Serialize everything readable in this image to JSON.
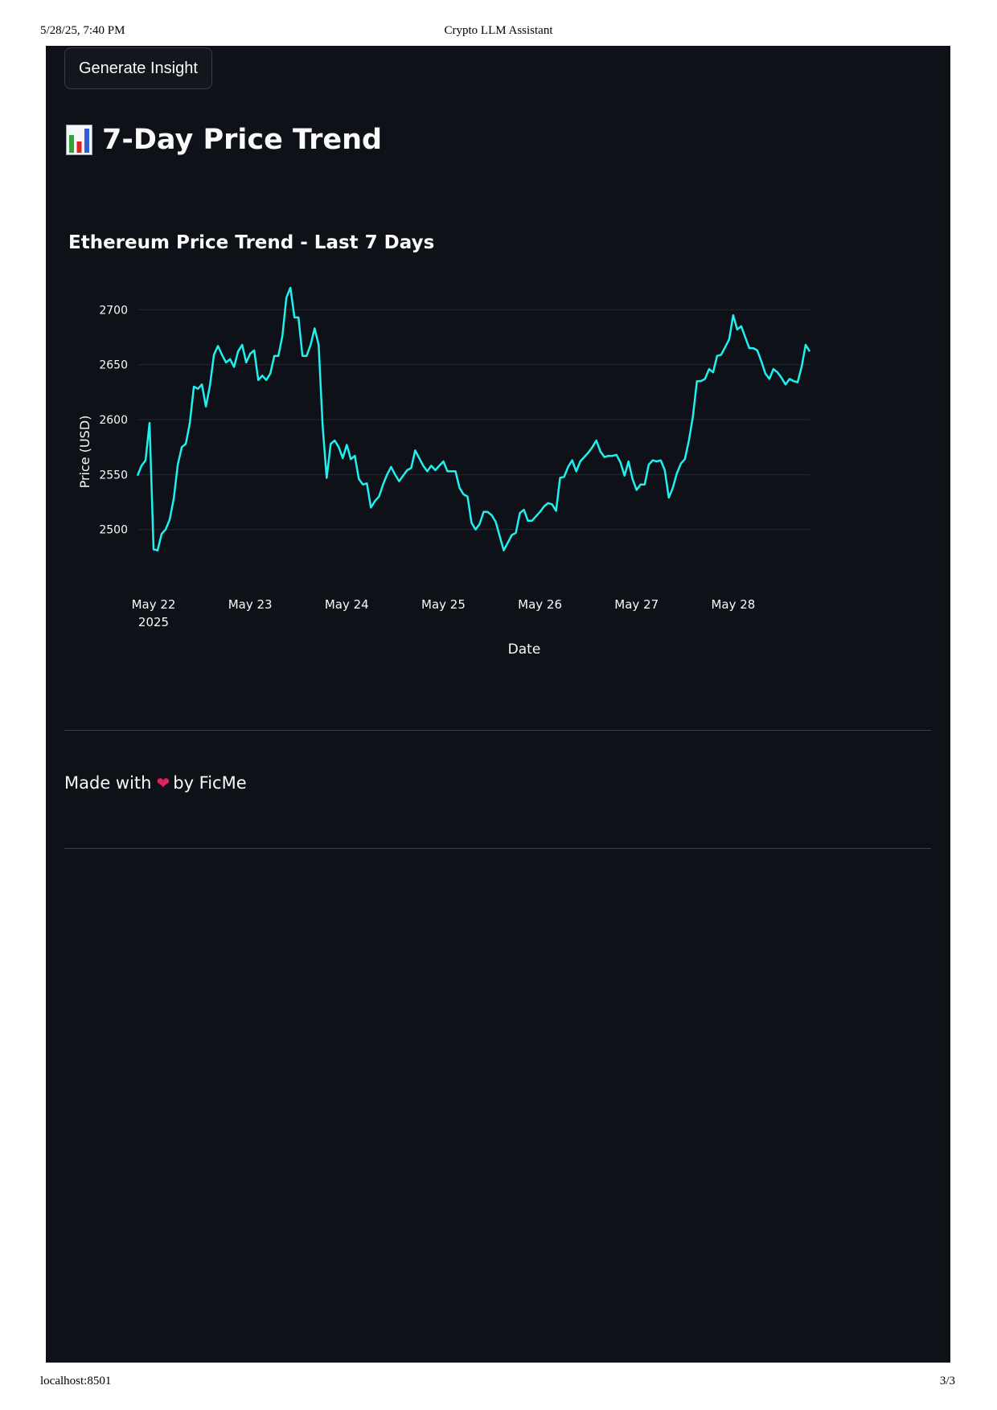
{
  "print_header": {
    "datetime": "5/28/25, 7:40 PM",
    "page_title": "Crypto LLM Assistant"
  },
  "print_footer": {
    "url": "localhost:8501",
    "page_number": "3/3"
  },
  "app": {
    "generate_button_label": "Generate Insight",
    "section_title": "7-Day Price Trend",
    "section_icon": "bar-chart-icon",
    "footer": {
      "made_with": "Made with",
      "heart_icon": "heart-icon",
      "by": "by FicMe"
    }
  },
  "colors": {
    "background": "#0e1117",
    "line": "#1ff1ef",
    "grid": "#262a33",
    "text": "#fafafa"
  },
  "chart_data": {
    "type": "line",
    "title": "Ethereum Price Trend - Last 7 Days",
    "xlabel": "Date",
    "ylabel": "Price (USD)",
    "x_start": "2025-05-21T20:00",
    "x_step_hours": 1,
    "x_ticks": [
      {
        "date": "2025-05-22",
        "label": "May 22",
        "sublabel": "2025"
      },
      {
        "date": "2025-05-23",
        "label": "May 23"
      },
      {
        "date": "2025-05-24",
        "label": "May 24"
      },
      {
        "date": "2025-05-25",
        "label": "May 25"
      },
      {
        "date": "2025-05-26",
        "label": "May 26"
      },
      {
        "date": "2025-05-27",
        "label": "May 27"
      },
      {
        "date": "2025-05-28",
        "label": "May 28"
      }
    ],
    "y_ticks": [
      2500,
      2550,
      2600,
      2650,
      2700
    ],
    "ylim": [
      2472,
      2728
    ],
    "grid": true,
    "series": [
      {
        "values": [
          2549,
          2558,
          2563,
          2597,
          2482,
          2481,
          2496,
          2500,
          2509,
          2528,
          2559,
          2575,
          2578,
          2597,
          2630,
          2628,
          2632,
          2612,
          2631,
          2659,
          2667,
          2659,
          2652,
          2655,
          2648,
          2662,
          2668,
          2652,
          2660,
          2663,
          2636,
          2640,
          2636,
          2642,
          2658,
          2658,
          2676,
          2711,
          2720,
          2693,
          2693,
          2658,
          2658,
          2668,
          2683,
          2668,
          2594,
          2547,
          2578,
          2581,
          2575,
          2565,
          2577,
          2564,
          2567,
          2546,
          2541,
          2542,
          2520,
          2526,
          2530,
          2541,
          2550,
          2557,
          2550,
          2544,
          2549,
          2554,
          2556,
          2572,
          2565,
          2558,
          2553,
          2558,
          2554,
          2558,
          2562,
          2553,
          2553,
          2553,
          2538,
          2532,
          2530,
          2506,
          2500,
          2505,
          2516,
          2516,
          2513,
          2507,
          2494,
          2481,
          2488,
          2495,
          2497,
          2515,
          2518,
          2508,
          2508,
          2512,
          2516,
          2521,
          2524,
          2523,
          2517,
          2547,
          2548,
          2557,
          2563,
          2553,
          2562,
          2566,
          2570,
          2575,
          2581,
          2571,
          2566,
          2567,
          2567,
          2568,
          2561,
          2549,
          2562,
          2546,
          2536,
          2541,
          2541,
          2559,
          2563,
          2562,
          2563,
          2554,
          2529,
          2538,
          2551,
          2560,
          2564,
          2581,
          2603,
          2635,
          2635,
          2637,
          2646,
          2643,
          2658,
          2659,
          2666,
          2673,
          2695,
          2682,
          2685,
          2675,
          2665,
          2665,
          2663,
          2653,
          2642,
          2637,
          2646,
          2643,
          2638,
          2632,
          2637,
          2635,
          2634,
          2648,
          2668,
          2662
        ]
      }
    ]
  }
}
